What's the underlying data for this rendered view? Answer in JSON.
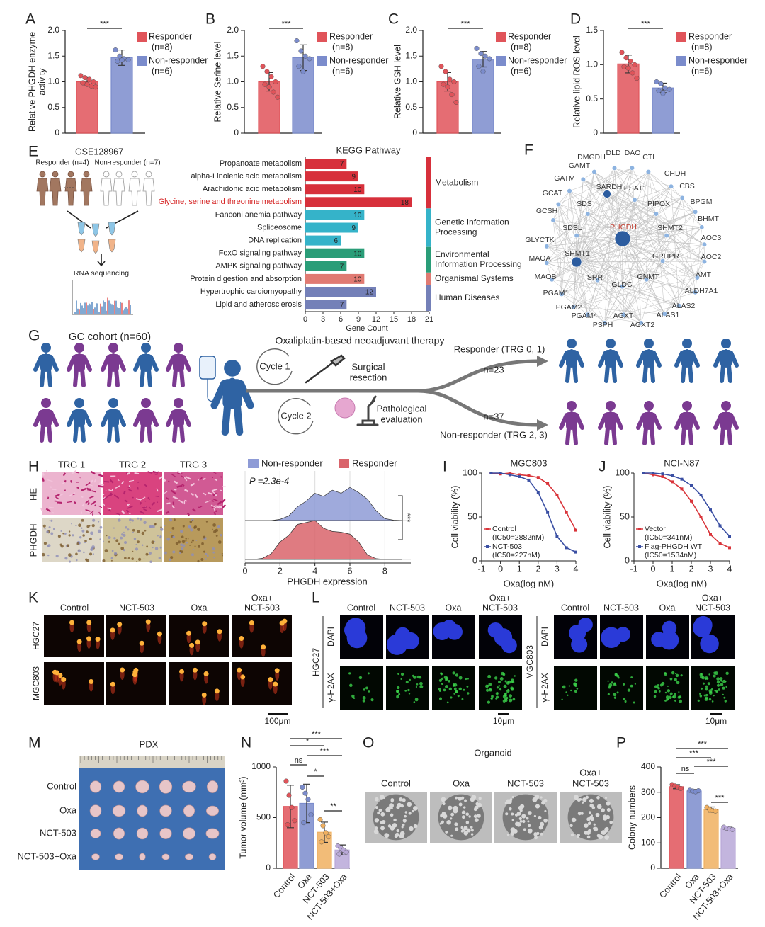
{
  "panels": [
    "A",
    "B",
    "C",
    "D",
    "E",
    "F",
    "G",
    "H",
    "I",
    "J",
    "K",
    "L",
    "M",
    "N",
    "O",
    "P"
  ],
  "chart_data": [
    {
      "type": "bar",
      "ylabel": [
        "Relative PHGDH enzyme",
        "activity"
      ],
      "categories": [
        "Responder",
        "Non-responder"
      ],
      "legend_notes": [
        "(n=8)",
        "(n=6)"
      ],
      "colors": [
        "#e0545a",
        "#7b8ccc"
      ],
      "values": [
        1.0,
        1.47
      ],
      "errors": [
        0.08,
        0.15
      ],
      "points": [
        [
          1.12,
          1.08,
          1.05,
          1.0,
          0.98,
          0.95,
          0.92,
          0.9
        ],
        [
          1.62,
          1.5,
          1.45,
          1.43,
          1.4,
          1.42
        ]
      ],
      "ylim": [
        0,
        2
      ],
      "yticks": [
        0,
        0.5,
        {
          "value": 1,
          "label": "1.0"
        },
        1.5,
        {
          "value": 2,
          "label": "2.0"
        }
      ],
      "significance": [
        "***"
      ]
    },
    {
      "type": "bar",
      "ylabel": "Relative Serine level",
      "categories": [
        "Responder",
        "Non-responder"
      ],
      "legend_notes": [
        "(n=8)",
        "(n=6)"
      ],
      "colors": [
        "#e0545a",
        "#7b8ccc"
      ],
      "values": [
        1.0,
        1.47
      ],
      "errors": [
        0.18,
        0.25
      ],
      "points": [
        [
          1.3,
          1.2,
          1.1,
          1.0,
          0.95,
          0.9,
          0.8,
          0.7
        ],
        [
          1.8,
          1.6,
          1.5,
          1.45,
          1.3,
          1.2
        ]
      ],
      "ylim": [
        0,
        2
      ],
      "yticks": [
        0,
        0.5,
        {
          "value": 1,
          "label": "1.0"
        },
        1.5,
        {
          "value": 2,
          "label": "2.0"
        }
      ],
      "significance": [
        "***"
      ]
    },
    {
      "type": "bar",
      "ylabel": "Relative GSH level",
      "categories": [
        "Responder",
        "Non-responder"
      ],
      "legend_notes": [
        "(n=8)",
        "(n=6)"
      ],
      "colors": [
        "#e0545a",
        "#7b8ccc"
      ],
      "values": [
        1.0,
        1.44
      ],
      "errors": [
        0.18,
        0.15
      ],
      "points": [
        [
          1.3,
          1.2,
          1.05,
          1.0,
          0.95,
          0.9,
          0.75,
          0.6
        ],
        [
          1.65,
          1.55,
          1.5,
          1.45,
          1.3,
          1.2
        ]
      ],
      "ylim": [
        0,
        2
      ],
      "yticks": [
        0,
        0.5,
        {
          "value": 1,
          "label": "1.0"
        },
        1.5,
        {
          "value": 2,
          "label": "2.0"
        }
      ],
      "significance": [
        "***"
      ]
    },
    {
      "type": "bar",
      "ylabel": "Relative lipid ROS level",
      "categories": [
        "Responder",
        "Non-responder"
      ],
      "legend_notes": [
        "(n=8)",
        "(n=6)"
      ],
      "colors": [
        "#e0545a",
        "#7b8ccc"
      ],
      "values": [
        1.01,
        0.66
      ],
      "errors": [
        0.13,
        0.07
      ],
      "points": [
        [
          1.18,
          1.1,
          1.05,
          1.0,
          0.97,
          0.95,
          0.88,
          0.8
        ],
        [
          0.75,
          0.72,
          0.66,
          0.64,
          0.62,
          0.58
        ]
      ],
      "ylim": [
        0,
        1.5
      ],
      "yticks": [
        0,
        0.5,
        {
          "value": 1,
          "label": "1.0"
        },
        1.5
      ],
      "significance": [
        "***"
      ]
    },
    {
      "type": "hbar",
      "title": "KEGG Pathway",
      "xlabel": "Gene Count",
      "categories": [
        "Propanoate metabolism",
        "alpha-Linolenic acid metabolism",
        "Arachidonic acid metabolism",
        "Glycine, serine and threonine metabolism",
        "Fanconi anemia pathway",
        "Spliceosome",
        "DNA replication",
        "FoxO signaling pathway",
        "AMPK signaling pathway",
        "Protein digestion and absorption",
        "Hypertrophic cardiomyopathy",
        "Lipid and atherosclerosis"
      ],
      "values": [
        7,
        9,
        10,
        18,
        10,
        9,
        6,
        10,
        7,
        10,
        12,
        7
      ],
      "colors": [
        "#d7303b",
        "#d7303b",
        "#d7303b",
        "#d7303b",
        "#35b3c9",
        "#35b3c9",
        "#35b3c9",
        "#2a9d78",
        "#2a9d78",
        "#e07a72",
        "#7480b8",
        "#7480b8"
      ],
      "label_colors": [
        "#222",
        "#222",
        "#222",
        "#d62828",
        "#222",
        "#222",
        "#222",
        "#222",
        "#222",
        "#222",
        "#222",
        "#222"
      ],
      "groups": [
        {
          "name": "Metabolism",
          "color": "#d7303b",
          "members": [
            0,
            1,
            2,
            3
          ]
        },
        {
          "name": [
            "Genetic Information",
            "Processing"
          ],
          "color": "#35b3c9",
          "members": [
            4,
            5,
            6
          ]
        },
        {
          "name": [
            "Environmental",
            "Information Processing"
          ],
          "color": "#2a9d78",
          "members": [
            7,
            8
          ]
        },
        {
          "name": "Organismal Systems",
          "color": "#e07a72",
          "members": [
            9
          ]
        },
        {
          "name": "Human Diseases",
          "color": "#7480b8",
          "members": [
            10,
            11
          ]
        }
      ],
      "xlim": [
        0,
        21
      ],
      "xticks": [
        0,
        3,
        6,
        9,
        12,
        15,
        18,
        21
      ]
    },
    {
      "type": "ridge",
      "xlabel": "PHGDH expression",
      "annotation": "P =2.3e-4",
      "significance": "***",
      "grid": true,
      "x": [
        0,
        0.5,
        1,
        1.5,
        2,
        2.5,
        3,
        3.5,
        4,
        4.5,
        5,
        5.5,
        6,
        6.5,
        7,
        7.5,
        8,
        8.5,
        9
      ],
      "series": [
        {
          "name": "Non-responder",
          "color": "#8e9bd6",
          "values": [
            0,
            0,
            0,
            0,
            0.03,
            0.12,
            0.35,
            0.5,
            0.7,
            0.62,
            0.78,
            0.7,
            0.85,
            0.72,
            0.55,
            0.25,
            0.05,
            0.01,
            0
          ]
        },
        {
          "name": "Responder",
          "color": "#d9646b",
          "values": [
            0,
            0,
            0.03,
            0.15,
            0.45,
            0.62,
            0.9,
            0.95,
            1.0,
            0.8,
            0.72,
            0.7,
            0.65,
            0.45,
            0.12,
            0.02,
            0,
            0,
            0
          ]
        }
      ],
      "xlim": [
        0,
        9
      ],
      "xticks": [
        0,
        2,
        4,
        6,
        8
      ]
    },
    {
      "type": "line",
      "title": "MGC803",
      "xlabel": "Oxa(log nM)",
      "ylabel": "Cell viability (%)",
      "x": [
        -0.5,
        0,
        0.5,
        1,
        1.5,
        2,
        2.5,
        3,
        3.5,
        4
      ],
      "xlim": [
        -1,
        4
      ],
      "xticks": [
        -1,
        0,
        1,
        2,
        3,
        4
      ],
      "ylim": [
        0,
        100
      ],
      "yticks": [
        0,
        50,
        100
      ],
      "series": [
        {
          "name": "Control",
          "note": "(IC50=2882nM)",
          "color": "#d9343a",
          "values": [
            100,
            99,
            100,
            98,
            97,
            95,
            88,
            75,
            55,
            35
          ]
        },
        {
          "name": "NCT-503",
          "note": "(IC50=227nM)",
          "color": "#3a4fa3",
          "values": [
            100,
            100,
            98,
            96,
            92,
            78,
            55,
            28,
            15,
            10
          ]
        }
      ]
    },
    {
      "type": "line",
      "title": "NCI-N87",
      "xlabel": "Oxa(log nM)",
      "ylabel": "Cell viability (%)",
      "x": [
        -0.5,
        0,
        0.5,
        1,
        1.5,
        2,
        2.5,
        3,
        3.5,
        4
      ],
      "xlim": [
        -1,
        4
      ],
      "xticks": [
        -1,
        0,
        1,
        2,
        3,
        4
      ],
      "ylim": [
        0,
        100
      ],
      "yticks": [
        0,
        50,
        100
      ],
      "series": [
        {
          "name": "Vector",
          "note": "(IC50=341nM)",
          "color": "#d9343a",
          "values": [
            100,
            98,
            96,
            90,
            82,
            68,
            50,
            30,
            20,
            15
          ]
        },
        {
          "name": "Flag-PHGDH WT",
          "note": "(IC50=1534nM)",
          "color": "#3a4fa3",
          "values": [
            100,
            100,
            99,
            97,
            93,
            86,
            75,
            58,
            40,
            28
          ]
        }
      ]
    },
    {
      "type": "bar",
      "ylabel": "Tumor volume (mm³)",
      "categories": [
        "Control",
        "Oxa",
        "NCT-503",
        "NCT-503+Oxa"
      ],
      "colors": [
        "#e0545a",
        "#7b8ccc",
        "#f0b060",
        "#b9a8d8"
      ],
      "values": [
        610,
        640,
        355,
        180
      ],
      "errors": [
        210,
        190,
        100,
        50
      ],
      "points": [
        [
          860,
          720,
          600,
          470,
          430
        ],
        [
          800,
          740,
          680,
          530,
          450
        ],
        [
          480,
          420,
          350,
          310,
          260
        ],
        [
          220,
          200,
          180,
          160,
          140
        ]
      ],
      "ylim": [
        0,
        1000
      ],
      "yticks": [
        0,
        500,
        1000
      ],
      "significance": [
        "***",
        "*",
        "***",
        "ns",
        "*",
        "**"
      ]
    },
    {
      "type": "bar",
      "ylabel": "Colony numbers",
      "categories": [
        "Control",
        "Oxa",
        "NCT-503",
        "NCT-503+Oxa"
      ],
      "colors": [
        "#e0545a",
        "#7b8ccc",
        "#f0b060",
        "#b9a8d8"
      ],
      "values": [
        322,
        305,
        232,
        157
      ],
      "errors": [
        8,
        6,
        10,
        5
      ],
      "points": [
        [
          330,
          325,
          320,
          315
        ],
        [
          308,
          305,
          302,
          306
        ],
        [
          240,
          232,
          228,
          226
        ],
        [
          162,
          158,
          155,
          153
        ]
      ],
      "ylim": [
        0,
        400
      ],
      "yticks": [
        0,
        100,
        200,
        300,
        400
      ],
      "significance": [
        "***",
        "***",
        "***",
        "ns",
        "***"
      ]
    }
  ],
  "rnaseq": {
    "dataset": "GSE128967",
    "responder": "Responder (n=4)",
    "non_responder": "Non-responder (n=7)",
    "method": "RNA sequencing"
  },
  "network": {
    "colors": {
      "node": "#8db3e0",
      "hub": "#2c5c9f",
      "edge": "#bdbdbd",
      "label": "#333",
      "highlight": "#c0392b"
    },
    "nodes": [
      {
        "label": "DMGDH"
      },
      {
        "label": "DLD"
      },
      {
        "label": "DAO"
      },
      {
        "label": "CTH"
      },
      {
        "label": "GAMT"
      },
      {
        "label": "CHDH"
      },
      {
        "label": "GATM"
      },
      {
        "label": "CBS"
      },
      {
        "label": "SARDH"
      },
      {
        "label": "PSAT1"
      },
      {
        "label": "GCAT"
      },
      {
        "label": "SDS"
      },
      {
        "label": "PIPOX"
      },
      {
        "label": "BPGM"
      },
      {
        "label": "GCSH"
      },
      {
        "label": "BHMT"
      },
      {
        "label": "SDSL"
      },
      {
        "label": "PHGDH",
        "highlight": true
      },
      {
        "label": "SHMT2"
      },
      {
        "label": "GLYCTK"
      },
      {
        "label": "AOC3"
      },
      {
        "label": "MAOA"
      },
      {
        "label": "SHMT1"
      },
      {
        "label": "GRHPR"
      },
      {
        "label": "AOC2"
      },
      {
        "label": "MAOB"
      },
      {
        "label": "SRR"
      },
      {
        "label": "GNMT"
      },
      {
        "label": "AMT"
      },
      {
        "label": "GLDC"
      },
      {
        "label": "PGAM1"
      },
      {
        "label": "ALDH7A1"
      },
      {
        "label": "PGAM2"
      },
      {
        "label": "ALAS2"
      },
      {
        "label": "PGAM4"
      },
      {
        "label": "AGXT"
      },
      {
        "label": "ALAS1"
      },
      {
        "label": "PSPH"
      },
      {
        "label": "AGXT2"
      }
    ]
  },
  "cohort": {
    "title": "GC cohort  (n=60)",
    "therapy": "Oxaliplatin-based neoadjuvant therapy",
    "cycle1": "Cycle 1",
    "surgery": [
      "Surgical",
      "resection"
    ],
    "cycle2": "Cycle 2",
    "pathology": [
      "Pathological",
      "evaluation"
    ],
    "responder": "Responder (TRG 0, 1)",
    "n_responder": "n=23",
    "n_non_responder": "n=37",
    "non_responder": "Non-responder (TRG 2, 3)",
    "colors": {
      "responder": "#2f63a3",
      "non_responder": "#7b3a91"
    }
  },
  "histology": {
    "columns": [
      "TRG 1",
      "TRG 2",
      "TRG 3"
    ],
    "rows": [
      "HE",
      "PHGDH"
    ]
  },
  "comet": {
    "columns": [
      "Control",
      "NCT-503",
      "Oxa",
      [
        "Oxa+",
        "NCT-503"
      ]
    ],
    "rows": [
      "HGC27",
      "MGC803"
    ],
    "scale": "100μm"
  },
  "immunofluorescence": {
    "columns": [
      "Control",
      "NCT-503",
      "Oxa",
      [
        "Oxa+",
        "NCT-503"
      ]
    ],
    "cell_lines": [
      "HGC27",
      "MGC803"
    ],
    "rows": [
      "DAPI",
      "γ-H2AX"
    ],
    "scale": "10μm"
  },
  "pdx": {
    "title": "PDX",
    "rows": [
      "Control",
      "Oxa",
      "NCT-503",
      "NCT-503+Oxa"
    ]
  },
  "organoid": {
    "title": "Organoid",
    "columns": [
      "Control",
      "Oxa",
      "NCT-503",
      [
        "Oxa+",
        "NCT-503"
      ]
    ]
  }
}
